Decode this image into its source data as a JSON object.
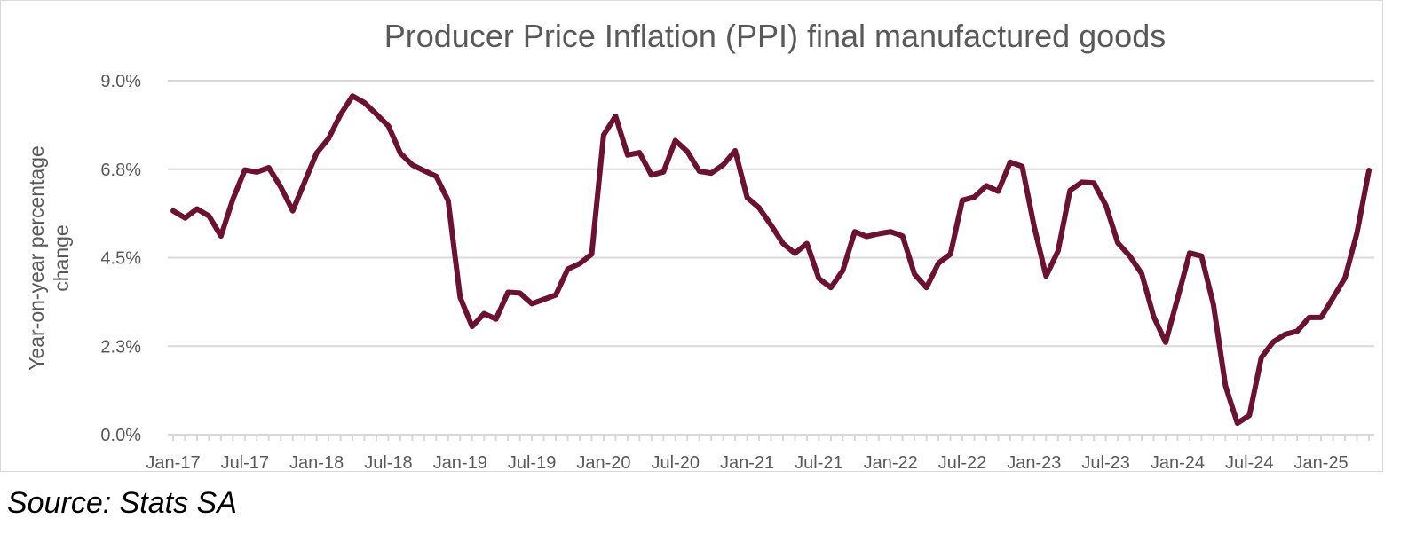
{
  "chart_data": {
    "type": "line",
    "title": "Producer Price Inflation (PPI) final manufactured goods",
    "ylabel_lines": [
      "Year-on-year percentage",
      "change"
    ],
    "xlabel": "",
    "ylim": [
      0,
      9
    ],
    "y_ticks": [
      0,
      2.25,
      4.5,
      6.75,
      9
    ],
    "y_tick_labels": [
      "0.0%",
      "2.3%",
      "4.5%",
      "6.8%",
      "9.0%"
    ],
    "x_tick_labels": [
      "Jan-17",
      "Jul-17",
      "Jan-18",
      "Jul-18",
      "Jan-19",
      "Jul-19",
      "Jan-20",
      "Jul-20",
      "Jan-21",
      "Jul-21",
      "Jan-22",
      "Jul-22",
      "Jan-23",
      "Jul-23",
      "Jan-24",
      "Jul-24",
      "Jan-25"
    ],
    "grid": true,
    "legend": "none",
    "series": [
      {
        "color": "#6b1232",
        "x": [
          "2017-01",
          "2017-02",
          "2017-03",
          "2017-04",
          "2017-05",
          "2017-06",
          "2017-07",
          "2017-08",
          "2017-09",
          "2017-10",
          "2017-11",
          "2017-12",
          "2018-01",
          "2018-02",
          "2018-03",
          "2018-04",
          "2018-05",
          "2018-06",
          "2018-07",
          "2018-08",
          "2018-09",
          "2018-10",
          "2018-11",
          "2018-12",
          "2019-01",
          "2019-02",
          "2019-03",
          "2019-04",
          "2019-05",
          "2019-06",
          "2019-07",
          "2019-08",
          "2019-09",
          "2019-10",
          "2019-11",
          "2019-12",
          "2020-01",
          "2020-02",
          "2020-03",
          "2020-04",
          "2020-05",
          "2020-06",
          "2020-07",
          "2020-08",
          "2020-09",
          "2020-10",
          "2020-11",
          "2020-12",
          "2021-01",
          "2021-02",
          "2021-03",
          "2021-04",
          "2021-05",
          "2021-06",
          "2021-07",
          "2021-08",
          "2021-09",
          "2021-10",
          "2021-11",
          "2021-12",
          "2022-01",
          "2022-02",
          "2022-03",
          "2022-04",
          "2022-05",
          "2022-06",
          "2022-07",
          "2022-08",
          "2022-09",
          "2022-10",
          "2022-11",
          "2022-12",
          "2023-01",
          "2023-02",
          "2023-03",
          "2023-04",
          "2023-05",
          "2023-06",
          "2023-07",
          "2023-08",
          "2023-09",
          "2023-10",
          "2023-11",
          "2023-12",
          "2024-01",
          "2024-02",
          "2024-03",
          "2024-04",
          "2024-05",
          "2024-06",
          "2024-07",
          "2024-08",
          "2024-09",
          "2024-10",
          "2024-11",
          "2024-12",
          "2025-01",
          "2025-02",
          "2025-03",
          "2025-04",
          "2025-05"
        ],
        "values": [
          5.69,
          5.51,
          5.74,
          5.56,
          5.05,
          5.99,
          6.73,
          6.68,
          6.79,
          6.3,
          5.69,
          6.43,
          7.16,
          7.53,
          8.14,
          8.61,
          8.44,
          8.15,
          7.85,
          7.16,
          6.86,
          6.71,
          6.57,
          5.95,
          3.49,
          2.75,
          3.08,
          2.94,
          3.62,
          3.6,
          3.33,
          3.44,
          3.55,
          4.21,
          4.35,
          4.59,
          7.62,
          8.1,
          7.11,
          7.17,
          6.6,
          6.68,
          7.48,
          7.2,
          6.7,
          6.65,
          6.86,
          7.22,
          6.03,
          5.77,
          5.33,
          4.86,
          4.61,
          4.86,
          3.97,
          3.74,
          4.17,
          5.16,
          5.04,
          5.11,
          5.16,
          5.05,
          4.08,
          3.74,
          4.36,
          4.59,
          5.96,
          6.04,
          6.33,
          6.19,
          6.93,
          6.82,
          5.3,
          4.03,
          4.67,
          6.21,
          6.42,
          6.4,
          5.83,
          4.88,
          4.54,
          4.09,
          3.0,
          2.35,
          3.47,
          4.62,
          4.54,
          3.3,
          1.24,
          0.29,
          0.49,
          1.96,
          2.36,
          2.55,
          2.63,
          2.98,
          2.98,
          3.48,
          3.99,
          5.13,
          6.72
        ]
      }
    ]
  },
  "source_note": "Source: Stats SA"
}
